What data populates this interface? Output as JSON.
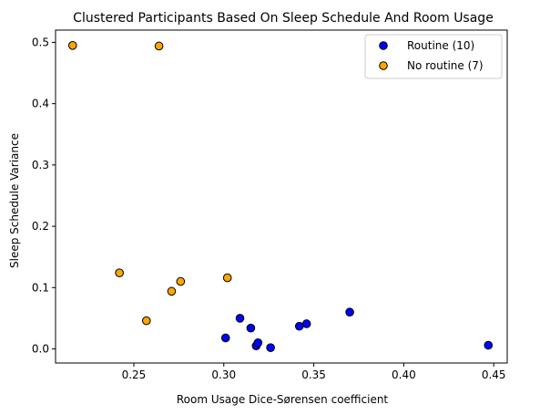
{
  "chart_data": {
    "type": "scatter",
    "title": "Clustered Participants Based On Sleep Schedule And Room Usage",
    "xlabel": "Room Usage Dice-Sørensen coefficient",
    "ylabel": "Sleep Schedule Variance",
    "xlim": [
      0.2065,
      0.4575
    ],
    "ylim": [
      -0.023,
      0.52
    ],
    "xticks": [
      0.25,
      0.3,
      0.35,
      0.4,
      0.45
    ],
    "xtick_labels": [
      "0.25",
      "0.30",
      "0.35",
      "0.40",
      "0.45"
    ],
    "yticks": [
      0.0,
      0.1,
      0.2,
      0.3,
      0.4,
      0.5
    ],
    "ytick_labels": [
      "0.0",
      "0.1",
      "0.2",
      "0.3",
      "0.4",
      "0.5"
    ],
    "grid": false,
    "legend_position": "top-right",
    "series": [
      {
        "name": "Routine (10)",
        "color": "#0000ff",
        "points": [
          [
            0.301,
            0.018
          ],
          [
            0.309,
            0.05
          ],
          [
            0.315,
            0.034
          ],
          [
            0.318,
            0.005
          ],
          [
            0.319,
            0.01
          ],
          [
            0.326,
            0.002
          ],
          [
            0.342,
            0.037
          ],
          [
            0.346,
            0.041
          ],
          [
            0.37,
            0.06
          ],
          [
            0.447,
            0.006
          ]
        ]
      },
      {
        "name": "No routine (7)",
        "color": "#ffa500",
        "points": [
          [
            0.216,
            0.495
          ],
          [
            0.264,
            0.494
          ],
          [
            0.242,
            0.124
          ],
          [
            0.257,
            0.046
          ],
          [
            0.271,
            0.094
          ],
          [
            0.276,
            0.11
          ],
          [
            0.302,
            0.116
          ]
        ]
      }
    ]
  }
}
